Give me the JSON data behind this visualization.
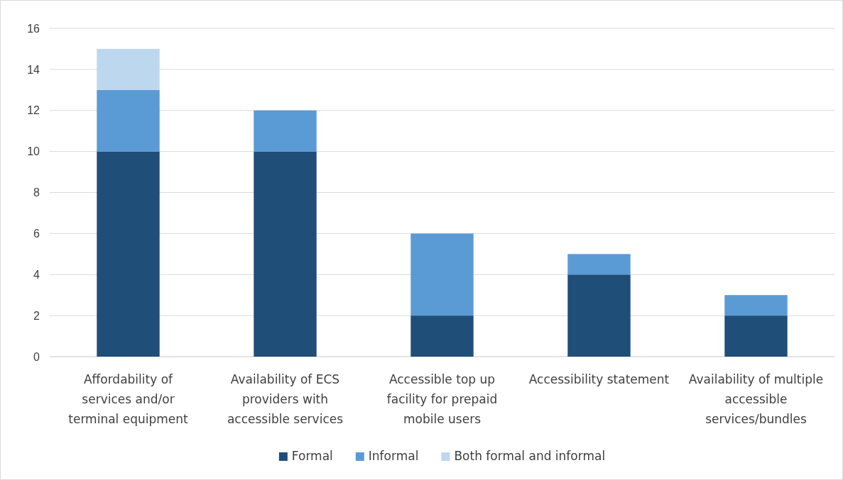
{
  "chart_data": {
    "type": "bar",
    "stacked": true,
    "categories": [
      "Affordability of services and/or terminal equipment",
      "Availability of ECS providers with accessible services",
      "Accessible top up facility for prepaid mobile users",
      "Accessibility statement",
      "Availability of multiple accessible services/bundles"
    ],
    "series": [
      {
        "name": "Formal",
        "color": "#1f4e79",
        "values": [
          10,
          10,
          2,
          4,
          2
        ]
      },
      {
        "name": "Informal",
        "color": "#5b9bd5",
        "values": [
          3,
          2,
          4,
          1,
          1
        ]
      },
      {
        "name": "Both formal and informal",
        "color": "#bdd7ee",
        "values": [
          2,
          null,
          null,
          null,
          null
        ]
      }
    ],
    "ylim": [
      0,
      16
    ],
    "yticks": [
      0,
      2,
      4,
      6,
      8,
      10,
      12,
      14,
      16
    ],
    "grid": "y",
    "legend": "bottom"
  }
}
